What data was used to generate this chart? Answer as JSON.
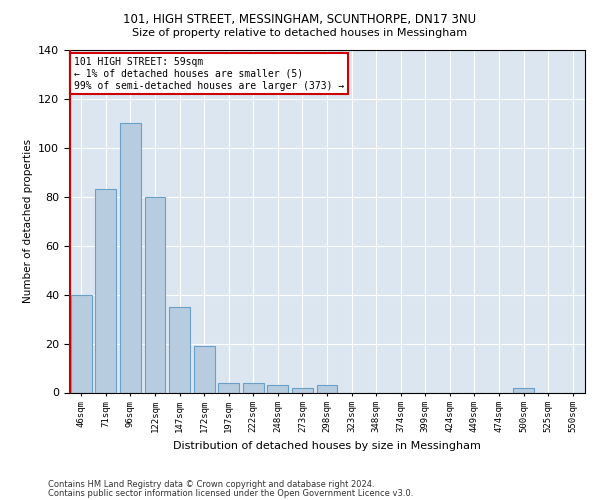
{
  "title1": "101, HIGH STREET, MESSINGHAM, SCUNTHORPE, DN17 3NU",
  "title2": "Size of property relative to detached houses in Messingham",
  "xlabel": "Distribution of detached houses by size in Messingham",
  "ylabel": "Number of detached properties",
  "footer1": "Contains HM Land Registry data © Crown copyright and database right 2024.",
  "footer2": "Contains public sector information licensed under the Open Government Licence v3.0.",
  "bar_labels": [
    "46sqm",
    "71sqm",
    "96sqm",
    "122sqm",
    "147sqm",
    "172sqm",
    "197sqm",
    "222sqm",
    "248sqm",
    "273sqm",
    "298sqm",
    "323sqm",
    "348sqm",
    "374sqm",
    "399sqm",
    "424sqm",
    "449sqm",
    "474sqm",
    "500sqm",
    "525sqm",
    "550sqm"
  ],
  "bar_values": [
    40,
    83,
    110,
    80,
    35,
    19,
    4,
    4,
    3,
    2,
    3,
    0,
    0,
    0,
    0,
    0,
    0,
    0,
    2,
    0,
    0
  ],
  "bar_color": "#b8ccdf",
  "bar_edge_color": "#6aa0c8",
  "background_color": "#dce6f0",
  "annotation_line1": "101 HIGH STREET: 59sqm",
  "annotation_line2": "← 1% of detached houses are smaller (5)",
  "annotation_line3": "99% of semi-detached houses are larger (373) →",
  "annotation_box_color": "#ffffff",
  "annotation_box_edge": "#cc0000",
  "vline_color": "#cc0000",
  "ylim": [
    0,
    140
  ],
  "yticks": [
    0,
    20,
    40,
    60,
    80,
    100,
    120,
    140
  ]
}
